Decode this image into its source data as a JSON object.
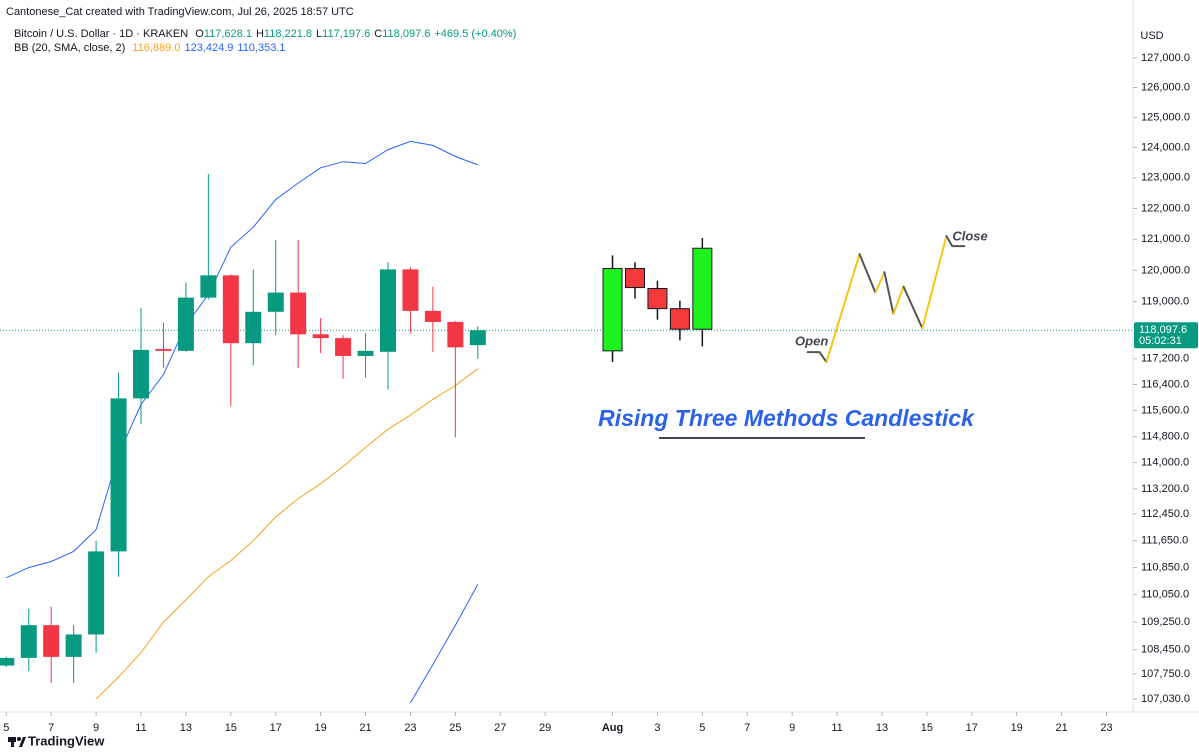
{
  "chart_data": {
    "type": "candlestick",
    "title": "Cantonese_Cat created with TradingView.com, Jul 26, 2025 18:57 UTC",
    "symbol": "Bitcoin / U.S. Dollar · 1D · KRAKEN",
    "ohlc": [
      {
        "key": "O",
        "value": "117,628.1"
      },
      {
        "key": "H",
        "value": "118,221.8"
      },
      {
        "key": "L",
        "value": "117,197.6"
      },
      {
        "key": "C",
        "value": "118,097.6"
      }
    ],
    "change": "+469.5 (+0.40%)",
    "indicator": "BB (20, SMA, close, 2)",
    "indicator_values": [
      "116,889.0",
      "123,424.9",
      "110,353.1"
    ],
    "x": [
      5,
      6,
      7,
      8,
      9,
      10,
      11,
      12,
      13,
      14,
      15,
      16,
      17,
      18,
      19,
      20,
      21,
      22,
      23,
      24,
      25,
      26
    ],
    "open": [
      107990,
      108210,
      109160,
      108240,
      108890,
      111330,
      115970,
      117510,
      117450,
      119130,
      119840,
      117690,
      118680,
      119290,
      117970,
      117850,
      117290,
      117420,
      120030,
      118710,
      118360,
      117628.1
    ],
    "high": [
      108250,
      109640,
      109700,
      109160,
      111650,
      116770,
      118810,
      118340,
      119610,
      123130,
      119870,
      120030,
      120970,
      120970,
      118490,
      117940,
      118000,
      120260,
      120100,
      119480,
      118390,
      118221.8
    ],
    "low": [
      107950,
      107830,
      107490,
      107490,
      108360,
      110580,
      115170,
      116920,
      117420,
      119070,
      115730,
      117000,
      117940,
      116920,
      117380,
      116580,
      116610,
      116240,
      118000,
      117420,
      114770,
      117197.6
    ],
    "close": [
      108210,
      109160,
      108240,
      108890,
      111330,
      115970,
      117480,
      117450,
      119130,
      119840,
      117690,
      118680,
      119290,
      117970,
      117850,
      117290,
      117450,
      120030,
      118710,
      118360,
      117560,
      118097.6
    ],
    "up_color": "#089981",
    "down_color": "#f23645",
    "overlays": [
      {
        "color": "#f7a21b",
        "values": [
          null,
          null,
          null,
          null,
          107030,
          107660,
          108360,
          109250,
          109900,
          110580,
          111060,
          111650,
          112360,
          112910,
          113360,
          113880,
          114460,
          115020,
          115450,
          115940,
          116370,
          116889.0
        ]
      },
      {
        "color": "#2962ff",
        "values": [
          110550,
          110850,
          111030,
          111330,
          111980,
          114250,
          115780,
          116710,
          118260,
          119230,
          120740,
          121390,
          122290,
          122830,
          123330,
          123530,
          123470,
          123930,
          124200,
          124070,
          123700,
          123424.9
        ]
      },
      {
        "color": "#2962ff",
        "values": [
          null,
          null,
          null,
          null,
          null,
          null,
          null,
          null,
          null,
          null,
          null,
          null,
          null,
          null,
          null,
          null,
          null,
          null,
          106920,
          108020,
          109160,
          110353.1
        ]
      }
    ],
    "pattern": {
      "x": [
        32,
        33,
        34,
        35,
        36
      ],
      "open": [
        117450,
        120060,
        119420,
        118780,
        118130
      ],
      "high": [
        120480,
        120260,
        119670,
        119030,
        121040
      ],
      "low": [
        117100,
        119100,
        118430,
        117780,
        117590
      ],
      "close": [
        120060,
        119450,
        118780,
        118130,
        120710
      ],
      "up_color": "#1ef21e",
      "down_color": "#f23a3a"
    },
    "zigzag": {
      "x": [
        40.69,
        41.22,
        41.53,
        43.0,
        43.71,
        44.11,
        44.51,
        44.96,
        45.8,
        46.87,
        47.13,
        47.67
      ],
      "values": [
        117410,
        117410,
        117100,
        120520,
        119290,
        119940,
        118610,
        119480,
        118160,
        121100,
        120780,
        120780
      ],
      "up_color": "#f5c518",
      "down_color": "#555555",
      "start_label": "Open",
      "end_label": "Close"
    },
    "annotation": "Rising Three Methods Candlestick",
    "log": true,
    "ylim": [
      106660,
      128290
    ],
    "yticks": [
      {
        "value": 127000,
        "label": "127,000.0"
      },
      {
        "value": 126000,
        "label": "126,000.0"
      },
      {
        "value": 125000,
        "label": "125,000.0"
      },
      {
        "value": 124000,
        "label": "124,000.0"
      },
      {
        "value": 123000,
        "label": "123,000.0"
      },
      {
        "value": 122000,
        "label": "122,000.0"
      },
      {
        "value": 121000,
        "label": "121,000.0"
      },
      {
        "value": 120000,
        "label": "120,000.0"
      },
      {
        "value": 119000,
        "label": "119,000.0"
      },
      {
        "value": 117200,
        "label": "117,200.0"
      },
      {
        "value": 116400,
        "label": "116,400.0"
      },
      {
        "value": 115600,
        "label": "115,600.0"
      },
      {
        "value": 114800,
        "label": "114,800.0"
      },
      {
        "value": 114000,
        "label": "114,000.0"
      },
      {
        "value": 113200,
        "label": "113,200.0"
      },
      {
        "value": 112450,
        "label": "112,450.0"
      },
      {
        "value": 111650,
        "label": "111,650.0"
      },
      {
        "value": 110850,
        "label": "110,850.0"
      },
      {
        "value": 110050,
        "label": "110,050.0"
      },
      {
        "value": 109250,
        "label": "109,250.0"
      },
      {
        "value": 108450,
        "label": "108,450.0"
      },
      {
        "value": 107750,
        "label": "107,750.0"
      },
      {
        "value": 107030,
        "label": "107,030.0"
      }
    ],
    "xlim": [
      4.72,
      55.18
    ],
    "xticks": [
      5,
      7,
      9,
      11,
      13,
      15,
      17,
      19,
      21,
      23,
      25,
      27,
      29,
      {
        "value": 32,
        "label": "Aug"
      },
      {
        "value": 34,
        "label": "3"
      },
      {
        "value": 36,
        "label": "5"
      },
      {
        "value": 38,
        "label": "7"
      },
      {
        "value": 40,
        "label": "9"
      },
      {
        "value": 42,
        "label": "11"
      },
      {
        "value": 44,
        "label": "13"
      },
      {
        "value": 46,
        "label": "15"
      },
      {
        "value": 48,
        "label": "17"
      },
      {
        "value": 50,
        "label": "19"
      },
      {
        "value": 52,
        "label": "21"
      },
      {
        "value": 54,
        "label": "23"
      }
    ],
    "currency": "USD",
    "last_price": {
      "value": 118097.6,
      "label": "118,097.6"
    },
    "countdown": "05:02:31",
    "watermark": "TradingView"
  }
}
